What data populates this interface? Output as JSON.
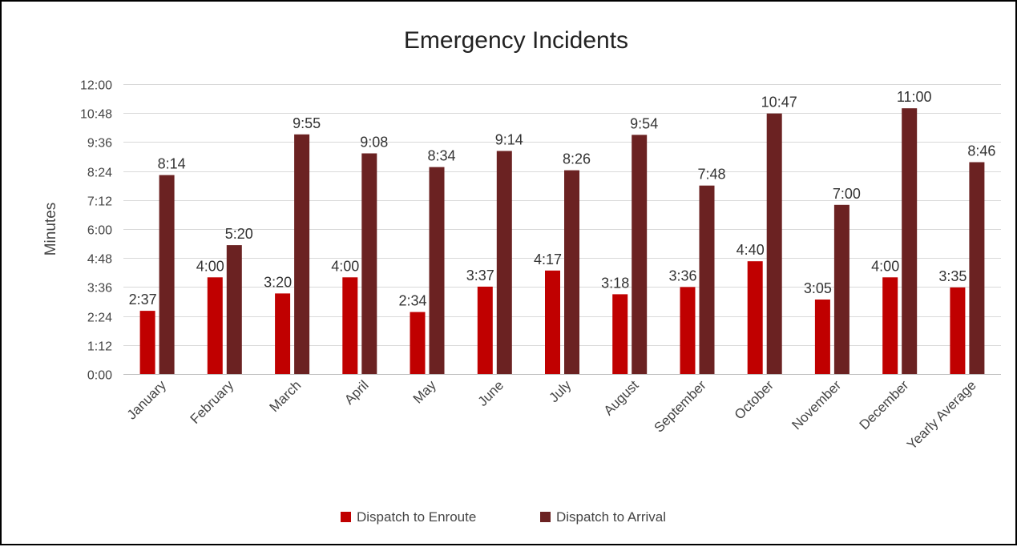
{
  "chart_data": {
    "type": "bar",
    "title": "Emergency Incidents",
    "ylabel": "Minutes",
    "xlabel": "",
    "value_unit": "minutes",
    "ylim": [
      0,
      720
    ],
    "yticks": [
      {
        "value": 0,
        "label": "0:00"
      },
      {
        "value": 72,
        "label": "1:12"
      },
      {
        "value": 144,
        "label": "2:24"
      },
      {
        "value": 216,
        "label": "3:36"
      },
      {
        "value": 288,
        "label": "4:48"
      },
      {
        "value": 360,
        "label": "6:00"
      },
      {
        "value": 432,
        "label": "7:12"
      },
      {
        "value": 504,
        "label": "8:24"
      },
      {
        "value": 576,
        "label": "9:36"
      },
      {
        "value": 648,
        "label": "10:48"
      },
      {
        "value": 720,
        "label": "12:00"
      }
    ],
    "categories": [
      "January",
      "February",
      "March",
      "April",
      "May",
      "June",
      "July",
      "August",
      "September",
      "October",
      "November",
      "December",
      "Yearly Average"
    ],
    "series": [
      {
        "name": "Dispatch to Enroute",
        "color": "#c00000",
        "values": [
          157,
          240,
          200,
          240,
          154,
          217,
          257,
          198,
          216,
          280,
          185,
          240,
          215
        ],
        "labels": [
          "2:37",
          "4:00",
          "3:20",
          "4:00",
          "2:34",
          "3:37",
          "4:17",
          "3:18",
          "3:36",
          "4:40",
          "3:05",
          "4:00",
          "3:35"
        ]
      },
      {
        "name": "Dispatch to Arrival",
        "color": "#6b2222",
        "values": [
          494,
          320,
          595,
          548,
          514,
          554,
          506,
          594,
          468,
          647,
          420,
          660,
          526
        ],
        "labels": [
          "8:14",
          "5:20",
          "9:55",
          "9:08",
          "8:34",
          "9:14",
          "8:26",
          "9:54",
          "7:48",
          "10:47",
          "7:00",
          "11:00",
          "8:46"
        ]
      }
    ],
    "grid": true,
    "legend_position": "bottom"
  }
}
